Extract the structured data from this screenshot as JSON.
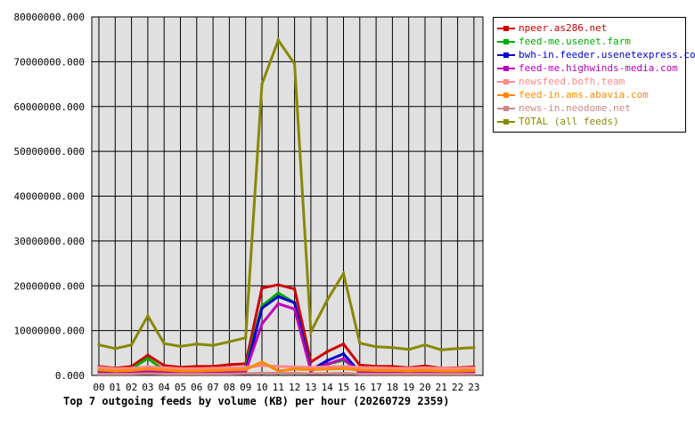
{
  "chart_data": {
    "type": "line",
    "title": "Top 7 outgoing feeds by volume (KB) per hour (20260729 2359)",
    "xlabel": "",
    "ylabel": "",
    "categories": [
      "00",
      "01",
      "02",
      "03",
      "04",
      "05",
      "06",
      "07",
      "08",
      "09",
      "10",
      "11",
      "12",
      "13",
      "14",
      "15",
      "16",
      "17",
      "18",
      "19",
      "20",
      "21",
      "22",
      "23"
    ],
    "y_ticks": [
      "0.000",
      "10000000.000",
      "20000000.000",
      "30000000.000",
      "40000000.000",
      "50000000.000",
      "60000000.000",
      "70000000.000",
      "80000000.000"
    ],
    "ylim": [
      0,
      80000000
    ],
    "grid": true,
    "legend_position": "top-right",
    "series": [
      {
        "name": "npeer.as286.net",
        "color": "#cc0000",
        "values": [
          2000000,
          1600000,
          2000000,
          4500000,
          2200000,
          1800000,
          2000000,
          2000000,
          2400000,
          2600000,
          19500000,
          20200000,
          19300000,
          3000000,
          5300000,
          7000000,
          2300000,
          2000000,
          2000000,
          1700000,
          2100000,
          1600000,
          1700000,
          1900000
        ]
      },
      {
        "name": "feed-me.usenet.farm",
        "color": "#00aa00",
        "values": [
          1000000,
          900000,
          1500000,
          3800000,
          1200000,
          1100000,
          1100000,
          1200000,
          1300000,
          1800000,
          15500000,
          18400000,
          16200000,
          1500000,
          2500000,
          3400000,
          1100000,
          1100000,
          1100000,
          1000000,
          1100000,
          1000000,
          1100000,
          1100000
        ]
      },
      {
        "name": "bwh-in.feeder.usenetexpress.com",
        "color": "#0000cc",
        "values": [
          600000,
          500000,
          700000,
          1000000,
          700000,
          600000,
          600000,
          700000,
          800000,
          1000000,
          15000000,
          17600000,
          16200000,
          1200000,
          3300000,
          4800000,
          700000,
          600000,
          600000,
          600000,
          700000,
          600000,
          600000,
          700000
        ]
      },
      {
        "name": "feed-me.highwinds-media.com",
        "color": "#bb00bb",
        "values": [
          500000,
          400000,
          600000,
          900000,
          600000,
          500000,
          500000,
          600000,
          700000,
          900000,
          11500000,
          16000000,
          14800000,
          1000000,
          2500000,
          3700000,
          600000,
          500000,
          500000,
          500000,
          600000,
          500000,
          500000,
          600000
        ]
      },
      {
        "name": "newsfeed.bofh.team",
        "color": "#ff8888",
        "values": [
          1800000,
          1500000,
          1600000,
          1900000,
          1700000,
          1500000,
          1500000,
          1600000,
          1700000,
          1800000,
          2200000,
          2000000,
          1900000,
          1800000,
          1900000,
          2000000,
          1800000,
          1700000,
          1600000,
          1600000,
          1700000,
          1600000,
          1600000,
          1700000
        ]
      },
      {
        "name": "feed-in.ams.abavia.com",
        "color": "#ff8800",
        "values": [
          1200000,
          1000000,
          1100000,
          1400000,
          1200000,
          1000000,
          1000000,
          1100000,
          1200000,
          1300000,
          3000000,
          1000000,
          1400000,
          1300000,
          1400000,
          1500000,
          1200000,
          1100000,
          1100000,
          1000000,
          1100000,
          1000000,
          1000000,
          1100000
        ]
      },
      {
        "name": "news-in.neodome.net",
        "color": "#cc8888",
        "values": [
          300000,
          300000,
          300000,
          400000,
          300000,
          300000,
          300000,
          300000,
          300000,
          400000,
          500000,
          500000,
          500000,
          400000,
          400000,
          500000,
          300000,
          300000,
          300000,
          300000,
          300000,
          300000,
          300000,
          300000
        ]
      },
      {
        "name": "TOTAL (all feeds)",
        "color": "#888800",
        "values": [
          6800000,
          6000000,
          6800000,
          13300000,
          7100000,
          6500000,
          7000000,
          6700000,
          7500000,
          8400000,
          65000000,
          74800000,
          69500000,
          9700000,
          16800000,
          22700000,
          7200000,
          6400000,
          6200000,
          5800000,
          6800000,
          5700000,
          6000000,
          6200000
        ]
      }
    ]
  }
}
